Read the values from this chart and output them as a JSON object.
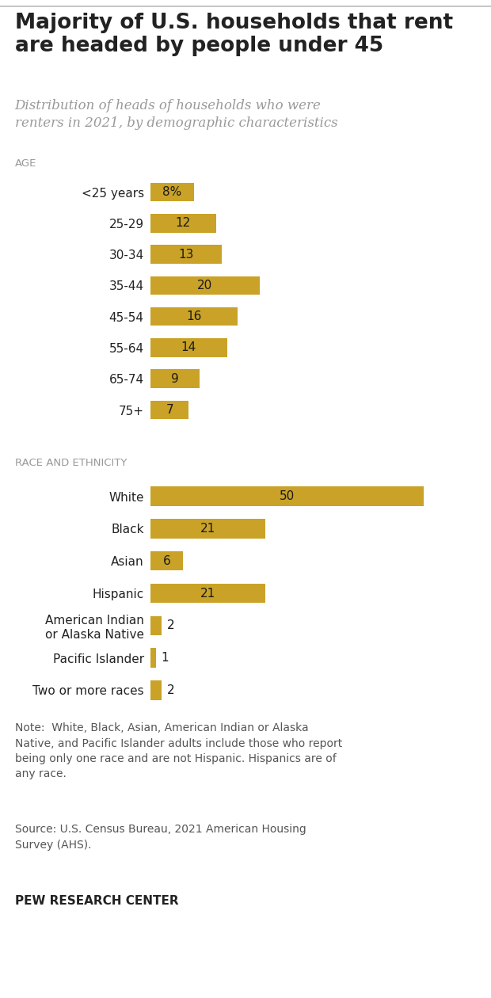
{
  "title": "Majority of U.S. households that rent\nare headed by people under 45",
  "subtitle": "Distribution of heads of households who were\nrenters in 2021, by demographic characteristics",
  "bar_color": "#C9A227",
  "bg_color": "#FFFFFF",
  "text_color": "#222222",
  "section_label_color": "#999999",
  "note_color": "#555555",
  "age_section_label": "AGE",
  "age_categories": [
    "<25 years",
    "25-29",
    "30-34",
    "35-44",
    "45-54",
    "55-64",
    "65-74",
    "75+"
  ],
  "age_values": [
    8,
    12,
    13,
    20,
    16,
    14,
    9,
    7
  ],
  "age_labels": [
    "8%",
    "12",
    "13",
    "20",
    "16",
    "14",
    "9",
    "7"
  ],
  "race_section_label": "RACE AND ETHNICITY",
  "race_categories": [
    "White",
    "Black",
    "Asian",
    "Hispanic",
    "American Indian\nor Alaska Native",
    "Pacific Islander",
    "Two or more races"
  ],
  "race_values": [
    50,
    21,
    6,
    21,
    2,
    1,
    2
  ],
  "race_labels": [
    "50",
    "21",
    "6",
    "21",
    "2",
    "1",
    "2"
  ],
  "xlim": [
    0,
    58
  ],
  "note": "Note:  White, Black, Asian, American Indian or Alaska\nNative, and Pacific Islander adults include those who report\nbeing only one race and are not Hispanic. Hispanics are of\nany race.",
  "source": "Source: U.S. Census Bureau, 2021 American Housing\nSurvey (AHS).",
  "footer": "PEW RESEARCH CENTER",
  "title_fontsize": 19,
  "subtitle_fontsize": 12,
  "label_fontsize": 11,
  "bar_label_fontsize": 11,
  "section_fontsize": 9.5,
  "note_fontsize": 10,
  "footer_fontsize": 11
}
